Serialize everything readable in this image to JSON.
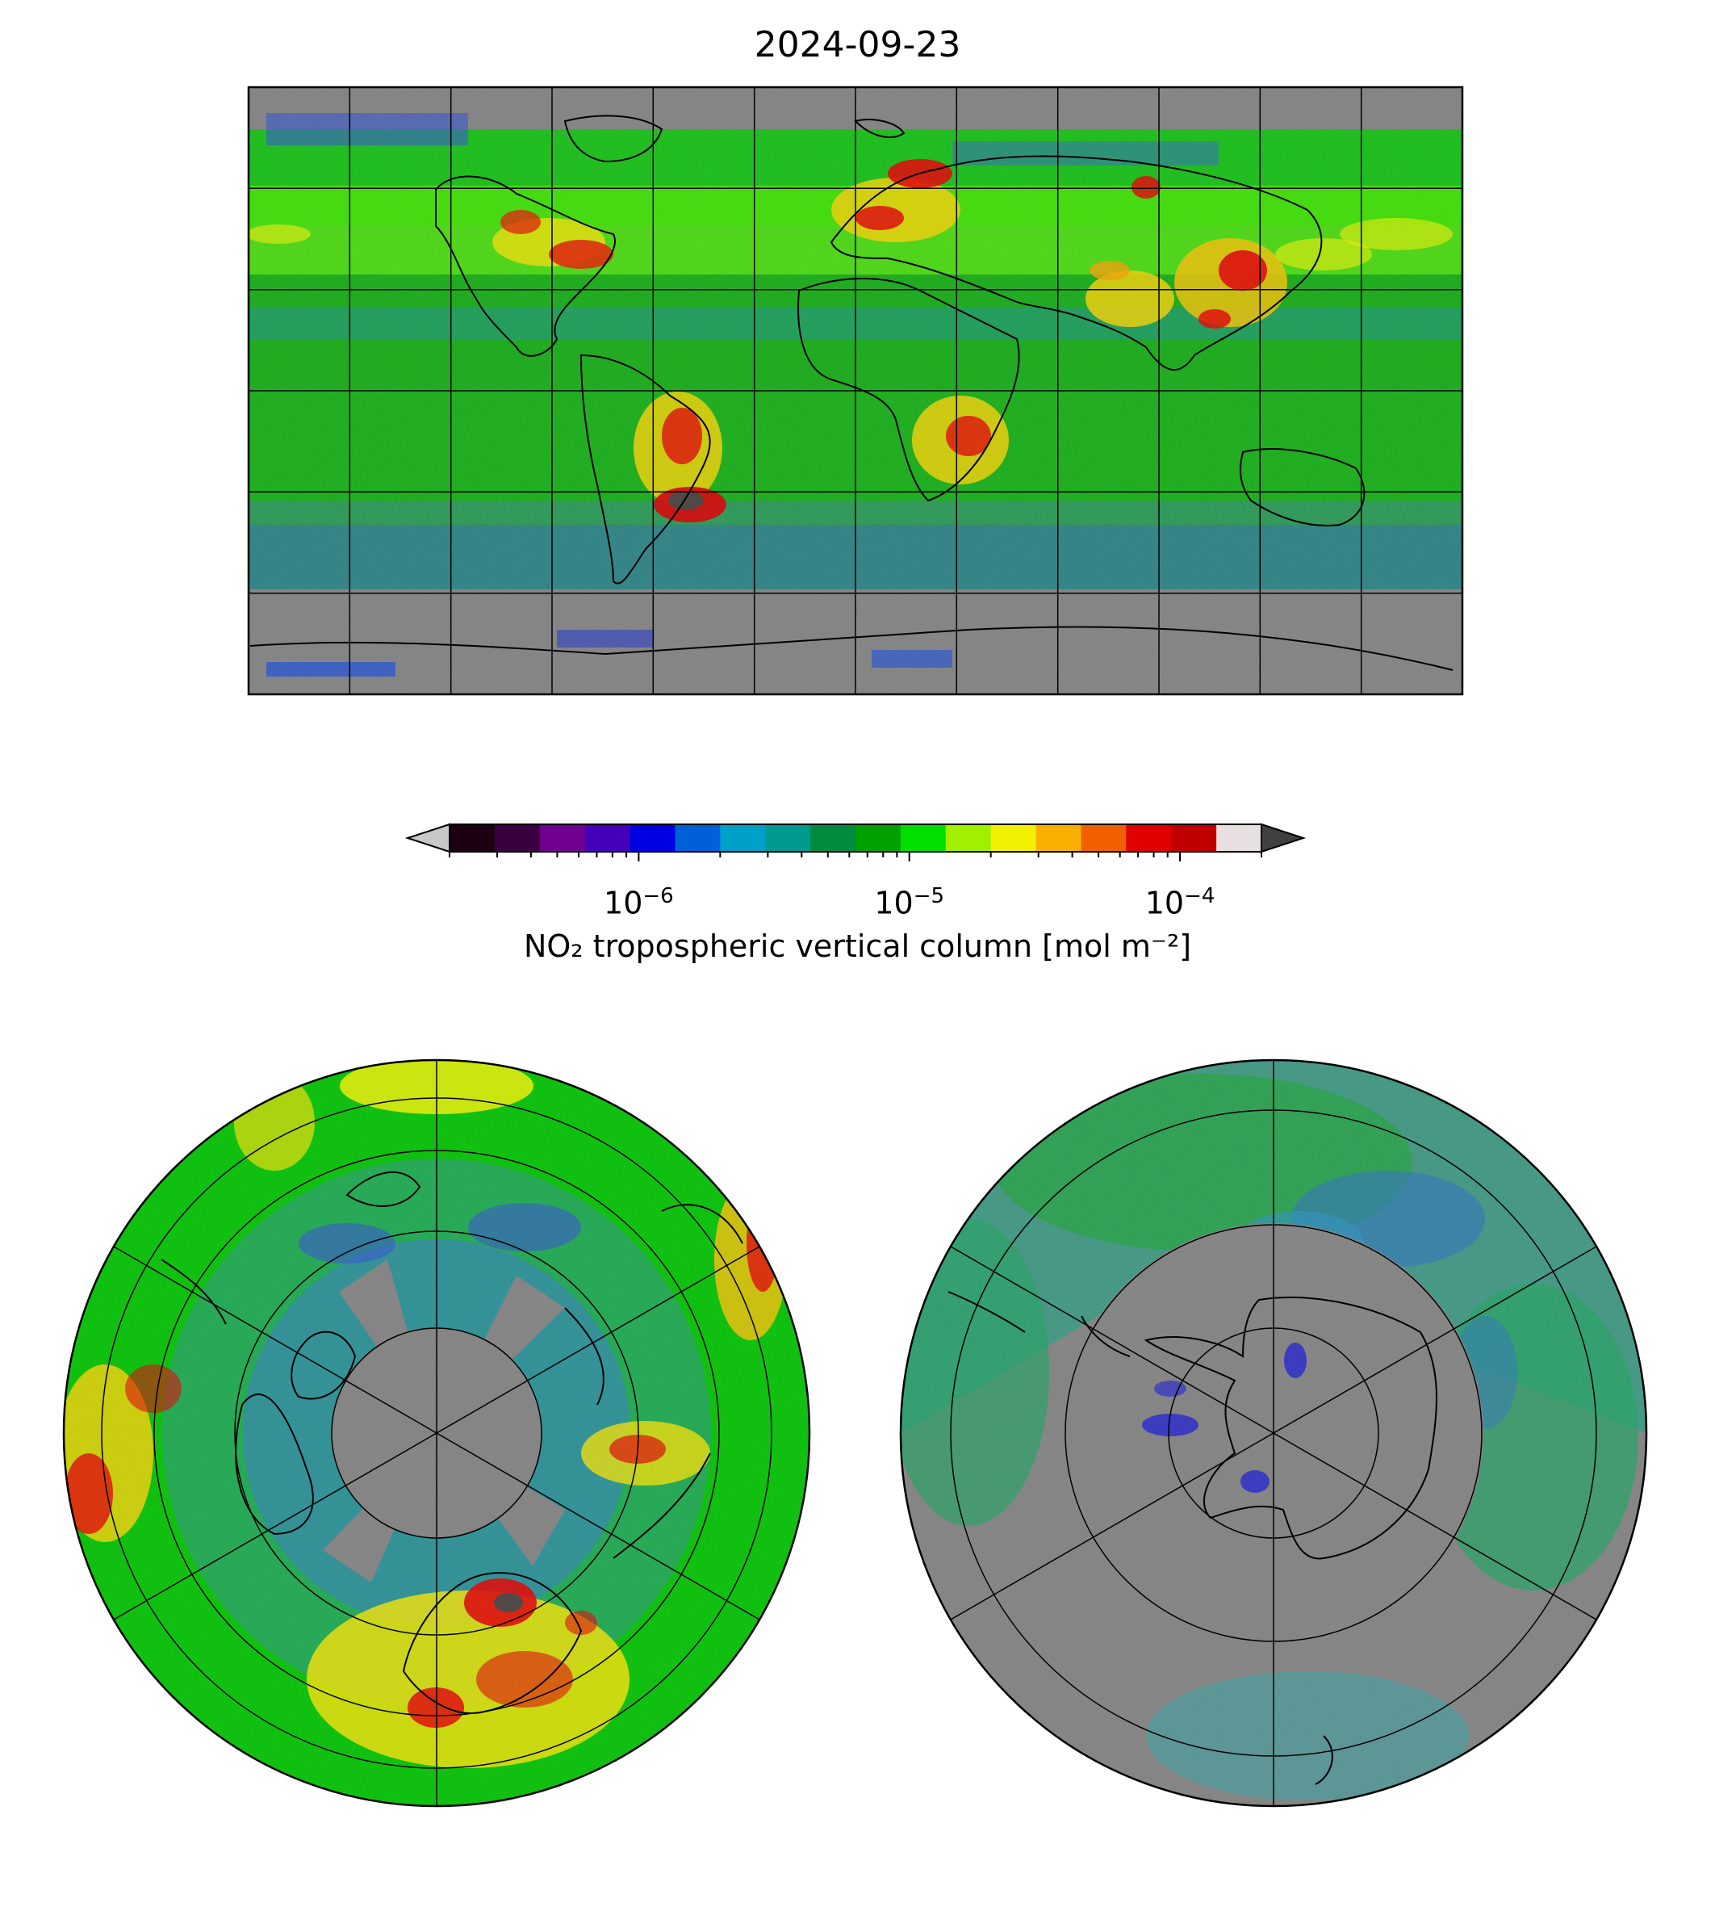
{
  "figure": {
    "title": "2024-09-23",
    "colorbar": {
      "label": "NO₂ tropospheric vertical column [mol m⁻²]",
      "scale": "log",
      "range": [
        2e-07,
        0.0002
      ],
      "extend": "both",
      "ticks": [
        {
          "base": "10",
          "exp": "−6",
          "value": 1e-06
        },
        {
          "base": "10",
          "exp": "−5",
          "value": 1e-05
        },
        {
          "base": "10",
          "exp": "−4",
          "value": 0.0001
        }
      ],
      "colors": [
        "#1a0010",
        "#3b0040",
        "#700090",
        "#4400b8",
        "#0000e0",
        "#0060d8",
        "#00a0c8",
        "#009a90",
        "#008c40",
        "#00a000",
        "#00e000",
        "#a0f000",
        "#f0f000",
        "#f8b000",
        "#f06000",
        "#e00000",
        "#c00000",
        "#e8e0e0"
      ],
      "under_color": "#c8c8c8",
      "over_color": "#404040"
    },
    "colors": {
      "no_data": "#808080",
      "background_hot": "#d00000",
      "frame": "#000000"
    },
    "maps": [
      {
        "name": "global",
        "projection": "plate-carree",
        "grid_lon_step": 30,
        "grid_lat_step": 30
      },
      {
        "name": "north-polar",
        "projection": "north-polar-stereographic",
        "rings_lat": [
          80,
          65,
          50,
          35
        ]
      },
      {
        "name": "south-polar",
        "projection": "south-polar-stereographic",
        "rings_lat": [
          -80,
          -65,
          -50,
          -35
        ]
      }
    ]
  }
}
